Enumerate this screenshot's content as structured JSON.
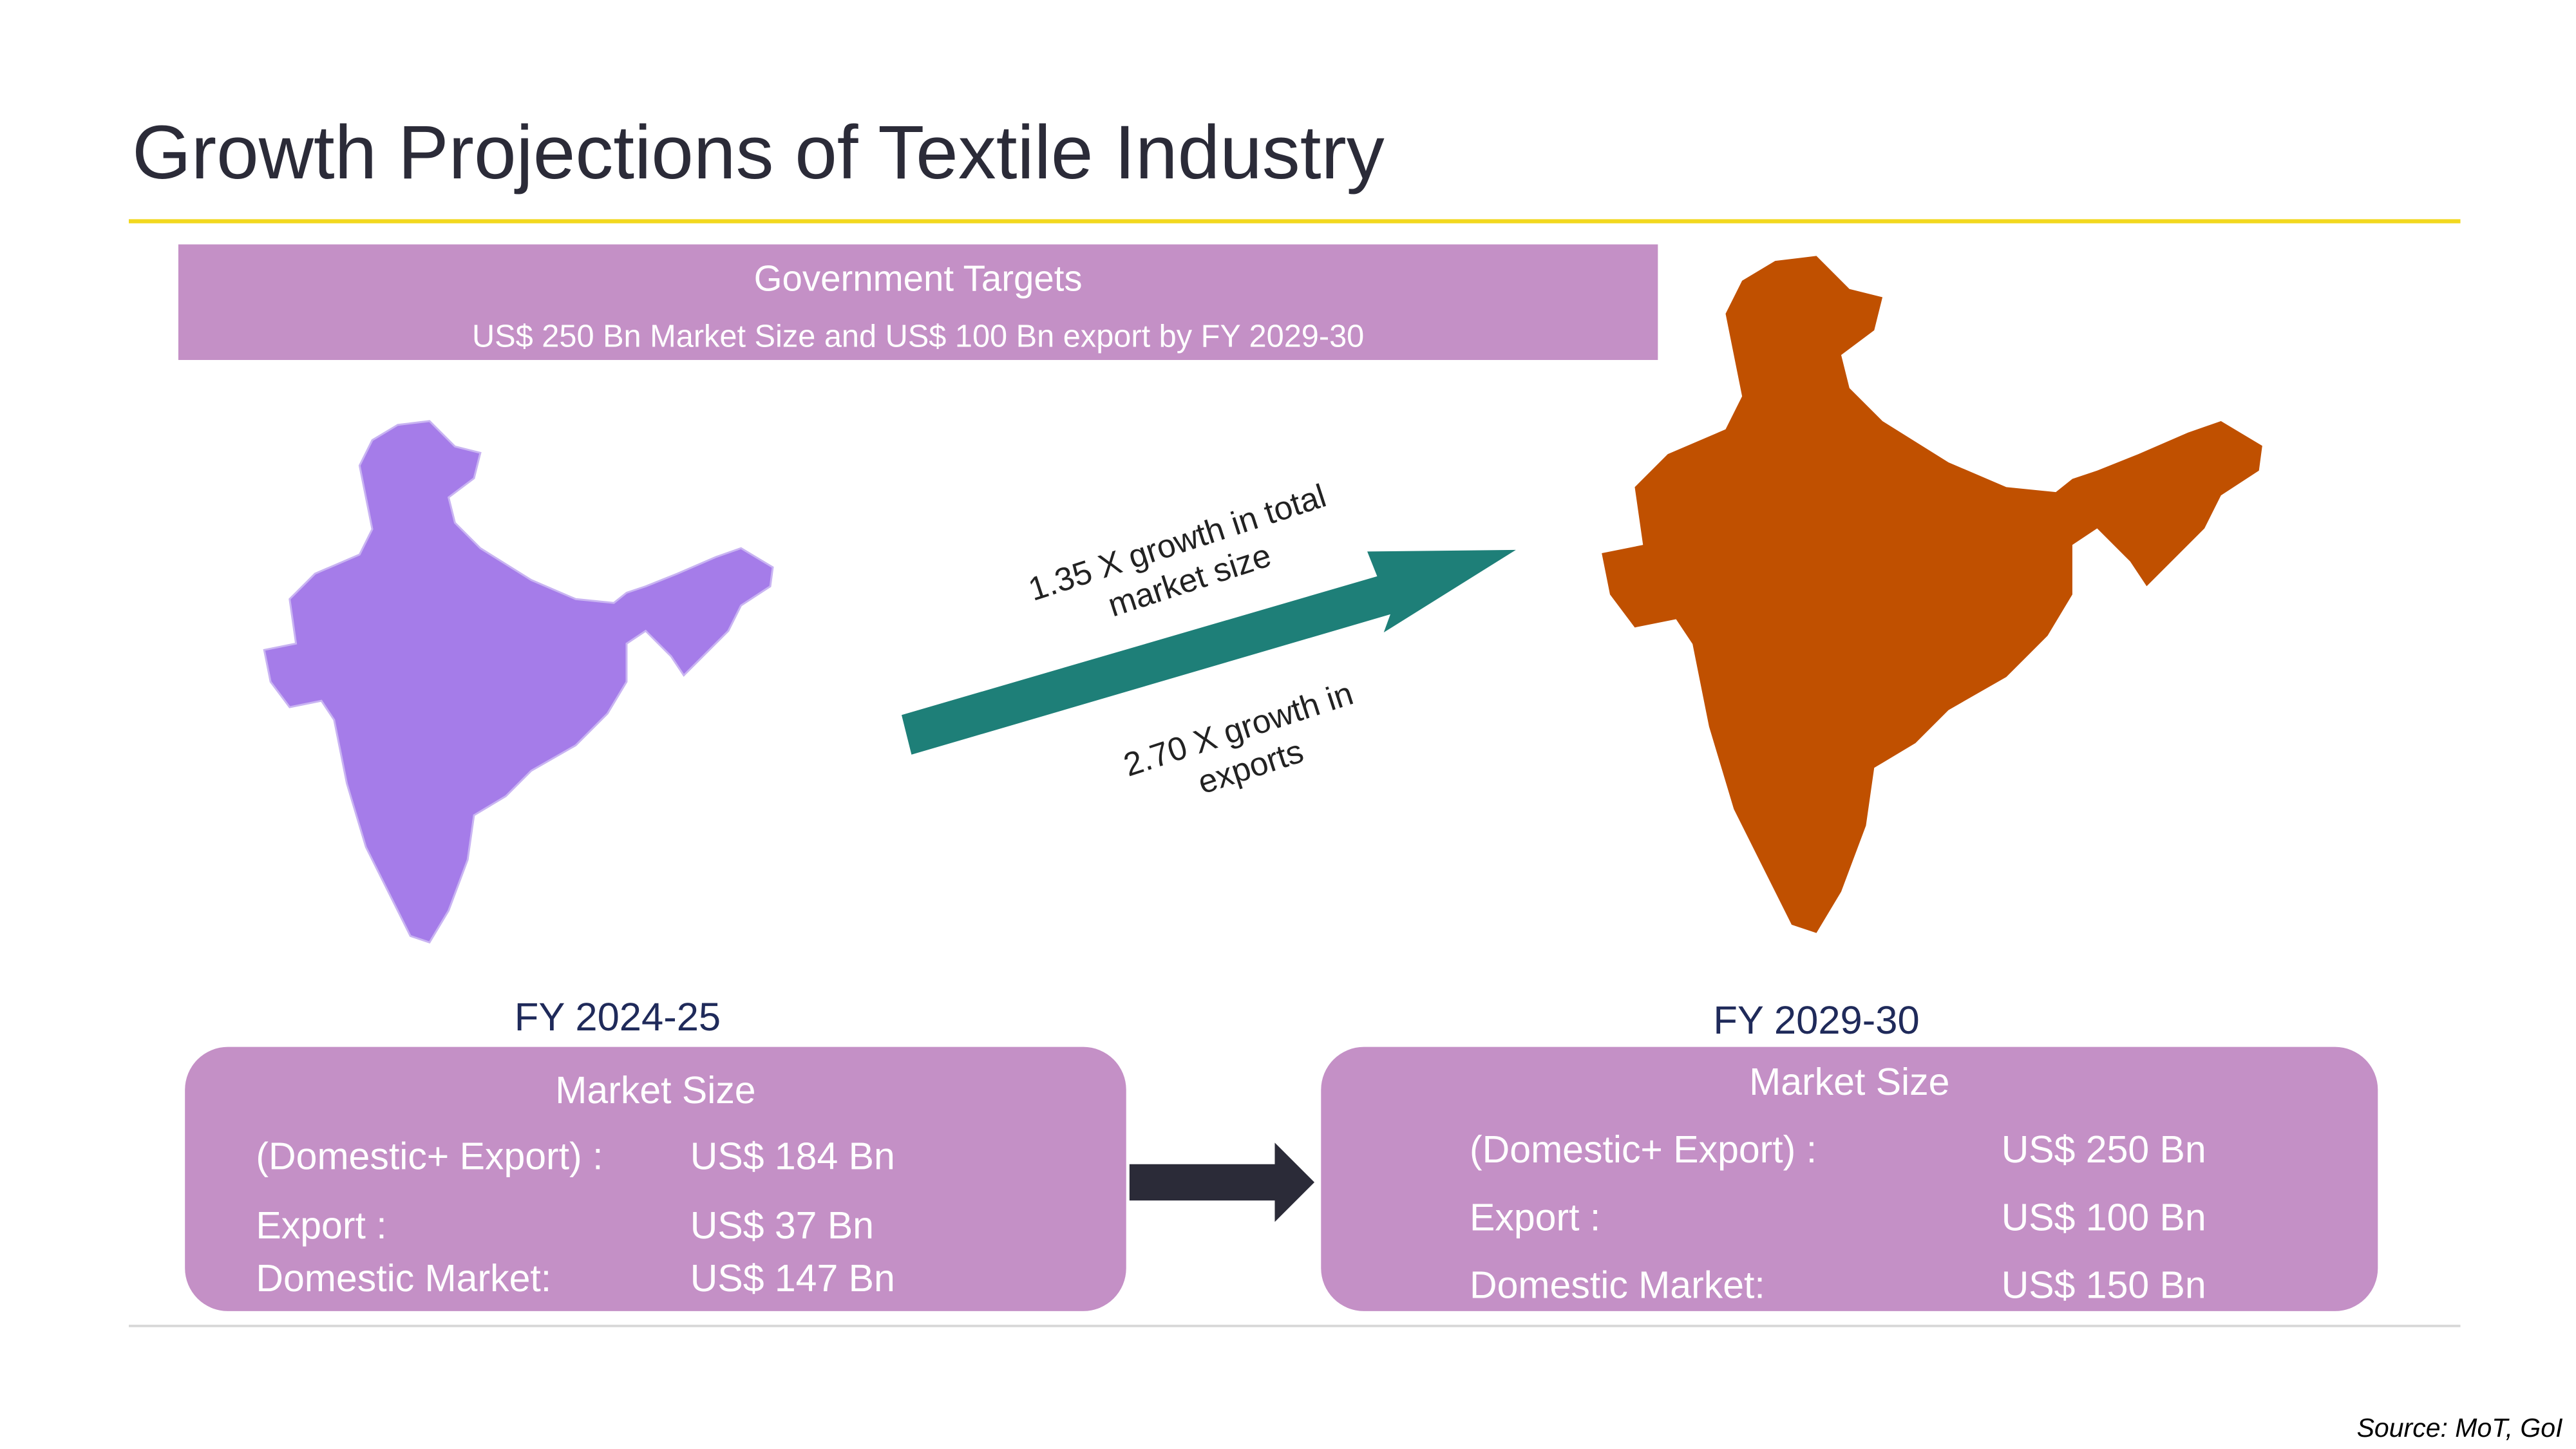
{
  "header": {
    "title": "Growth Projections of Textile Industry"
  },
  "banner": {
    "title": "Government Targets",
    "text": "US$ 250 Bn Market Size and US$ 100 Bn export by FY 2029-30"
  },
  "growth_labels": [
    {
      "lines": [
        "1.35 X growth in total",
        "market size"
      ]
    },
    {
      "lines": [
        "2.70 X growth in",
        "exports"
      ]
    }
  ],
  "panels": [
    {
      "year": "FY 2024-25",
      "heading": "Market Size",
      "rows": [
        {
          "label": "(Domestic+ Export) :",
          "value": "US$ 184 Bn"
        },
        {
          "label": "Export :",
          "value": "US$ 37 Bn"
        },
        {
          "label": "Domestic Market:",
          "value": "US$ 147 Bn"
        }
      ]
    },
    {
      "year": "FY 2029-30",
      "heading": "Market Size",
      "rows": [
        {
          "label": "(Domestic+ Export) :",
          "value": "US$ 250 Bn"
        },
        {
          "label": "Export :",
          "value": "US$ 100 Bn"
        },
        {
          "label": "Domestic Market:",
          "value": "US$ 150 Bn"
        }
      ]
    }
  ],
  "source": "Source: MoT, GoI"
}
